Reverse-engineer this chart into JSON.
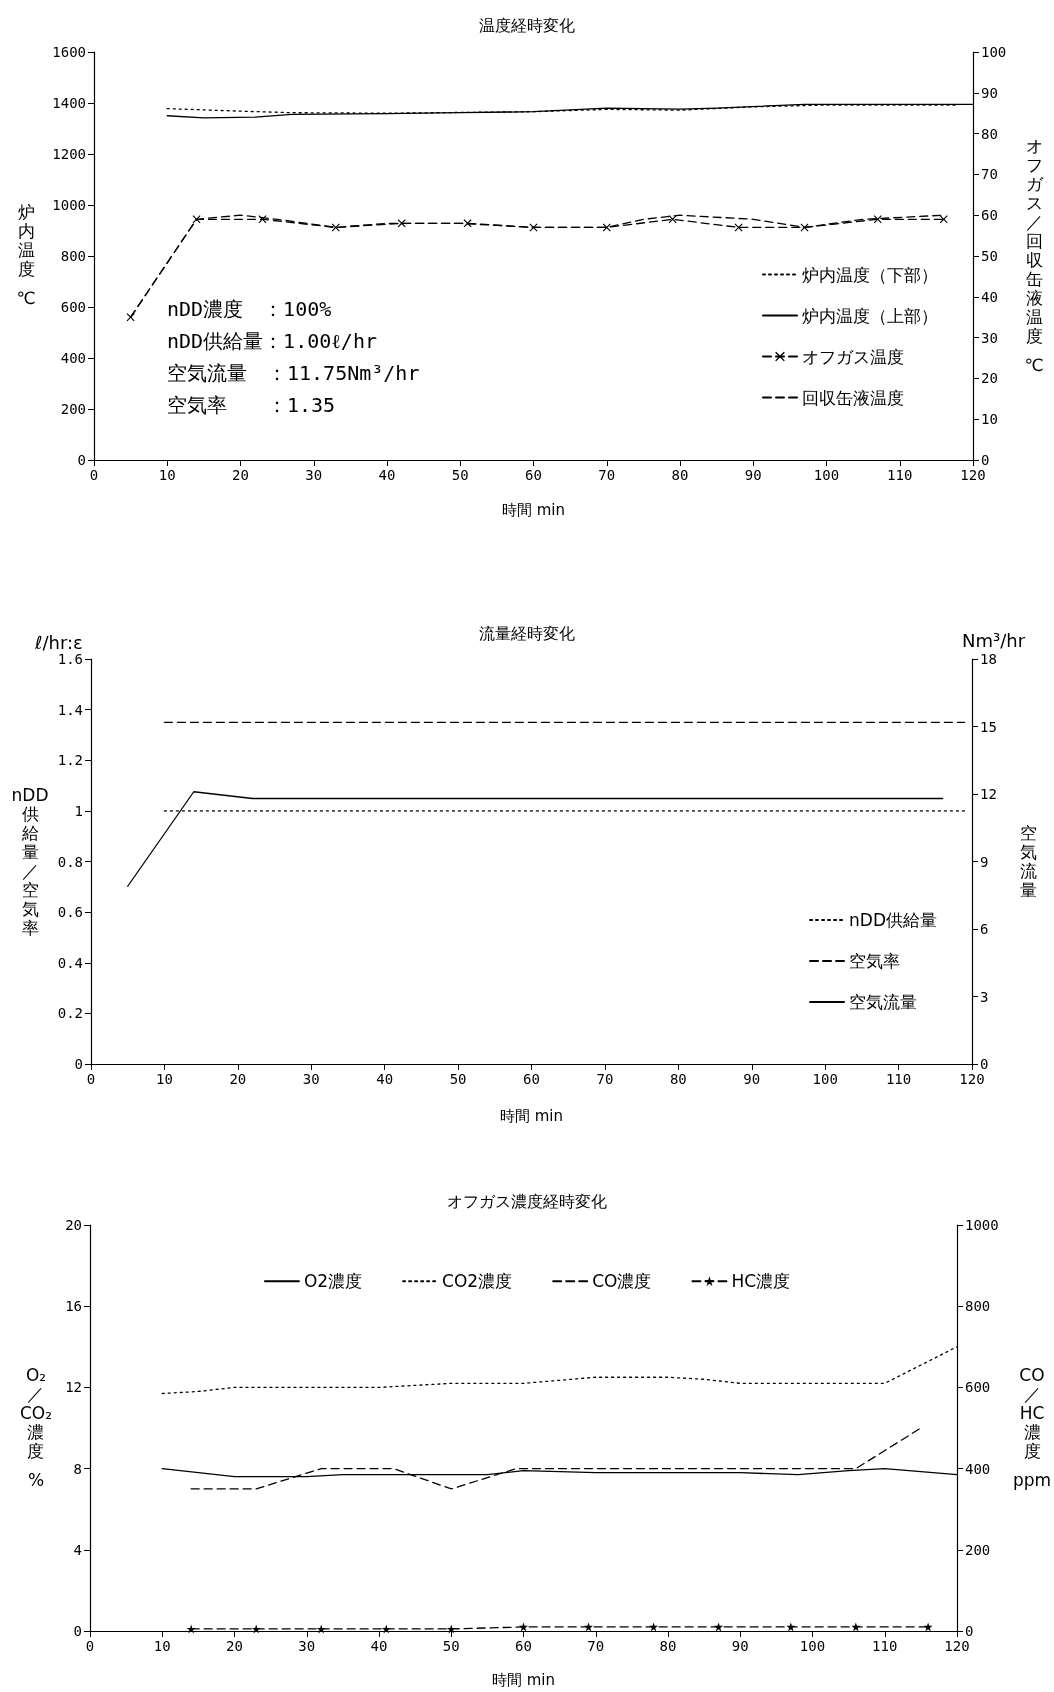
{
  "chart_data": [
    {
      "type": "line",
      "title": "温度経時変化",
      "xlabel": "時間 min",
      "ylabel": "炉内温度 ℃",
      "y2label": "オフガス／回収缶液温度 ℃",
      "annotations": [
        "nDD濃度　：100%",
        "nDD供給量：1.00ℓ/hr",
        "空気流量　：11.75Nm³/hr",
        "空気率　　：1.35"
      ],
      "xlim": [
        0,
        120
      ],
      "xticks": [
        0,
        10,
        20,
        30,
        40,
        50,
        60,
        70,
        80,
        90,
        100,
        110,
        120
      ],
      "ylim": [
        0,
        1600
      ],
      "yticks": [
        0,
        200,
        400,
        600,
        800,
        1000,
        1200,
        1400,
        1600
      ],
      "y2lim": [
        0,
        100
      ],
      "y2ticks": [
        0,
        10,
        20,
        30,
        40,
        50,
        60,
        70,
        80,
        90,
        100
      ],
      "grid": false,
      "legend": "bottom right",
      "series": [
        {
          "name": "炉内温度（下部）",
          "color": "#000000",
          "line_style": "dotted",
          "x": [
            10,
            20,
            27,
            40,
            60,
            70,
            80,
            90,
            100,
            118
          ],
          "values": [
            1378,
            1368,
            1362,
            1360,
            1366,
            1375,
            1372,
            1385,
            1392,
            1392
          ]
        },
        {
          "name": "炉内温度（上部）",
          "color": "#000000",
          "line_style": "solid",
          "x": [
            10,
            15,
            22,
            27,
            40,
            50,
            60,
            70,
            80,
            85,
            97,
            110,
            120
          ],
          "values": [
            1350,
            1342,
            1345,
            1355,
            1358,
            1362,
            1366,
            1380,
            1376,
            1380,
            1395,
            1395,
            1395
          ]
        },
        {
          "name": "オフガス温度",
          "color": "#000000",
          "line_style": "dashed",
          "marker": "cross",
          "axis": "y2",
          "x": [
            5,
            14,
            23,
            33,
            42,
            51,
            60,
            70,
            79,
            88,
            97,
            107,
            116
          ],
          "values": [
            35,
            59,
            59,
            57,
            58,
            58,
            57,
            57,
            59,
            57,
            57,
            59,
            59
          ]
        },
        {
          "name": "回収缶液温度",
          "color": "#000000",
          "line_style": "dashed",
          "axis": "y2",
          "x": [
            5,
            14,
            20,
            25,
            33,
            40,
            50,
            60,
            70,
            75,
            80,
            90,
            97,
            105,
            116
          ],
          "values": [
            35,
            59,
            60,
            59,
            57,
            58,
            58,
            57,
            57,
            59,
            60,
            59,
            57,
            59,
            60
          ]
        }
      ]
    },
    {
      "type": "line",
      "title": "流量経時変化",
      "xlabel": "時間 min",
      "ylabel": "nDD供給量／空気率",
      "y2label": "空気流量",
      "annotations": [
        "ℓ/hr:ε",
        "Nm³/hr"
      ],
      "xlim": [
        0,
        120
      ],
      "xticks": [
        0,
        10,
        20,
        30,
        40,
        50,
        60,
        70,
        80,
        90,
        100,
        110,
        120
      ],
      "ylim": [
        0,
        1.6
      ],
      "yticks": [
        0,
        0.2,
        0.4,
        0.6,
        0.8,
        1,
        1.2,
        1.4,
        1.6
      ],
      "y2lim": [
        0,
        18
      ],
      "y2ticks": [
        0,
        3,
        6,
        9,
        12,
        15,
        18
      ],
      "grid": false,
      "legend": "bottom right",
      "series": [
        {
          "name": "nDD供給量",
          "color": "#000000",
          "line_style": "dotted",
          "x": [
            10,
            119
          ],
          "values": [
            1,
            1
          ]
        },
        {
          "name": "空気率",
          "color": "#000000",
          "line_style": "dashed",
          "x": [
            10,
            119
          ],
          "values": [
            1.35,
            1.35
          ]
        },
        {
          "name": "空気流量",
          "color": "#000000",
          "line_style": "solid",
          "axis": "y2",
          "x": [
            5,
            14,
            22,
            116
          ],
          "values": [
            7.9,
            12.1,
            11.8,
            11.8
          ]
        }
      ]
    },
    {
      "type": "line",
      "title": "オフガス濃度経時変化",
      "xlabel": "時間 min",
      "ylabel": "O₂／CO₂濃度 %",
      "y2label": "CO／HC濃度 ppm",
      "xlim": [
        0,
        120
      ],
      "xticks": [
        0,
        10,
        20,
        30,
        40,
        50,
        60,
        70,
        80,
        90,
        100,
        110,
        120
      ],
      "ylim": [
        0,
        20
      ],
      "yticks": [
        0,
        4,
        8,
        12,
        16,
        20
      ],
      "y2lim": [
        0,
        1000
      ],
      "y2ticks": [
        0,
        200,
        400,
        600,
        800,
        1000
      ],
      "grid": false,
      "legend": "top",
      "series": [
        {
          "name": "O2濃度",
          "color": "#000000",
          "line_style": "solid",
          "x": [
            10,
            15,
            20,
            25,
            30,
            35,
            40,
            50,
            55,
            60,
            70,
            80,
            90,
            98,
            105,
            110,
            120
          ],
          "values": [
            8.0,
            7.8,
            7.6,
            7.6,
            7.6,
            7.7,
            7.7,
            7.7,
            7.7,
            7.9,
            7.8,
            7.8,
            7.8,
            7.7,
            7.9,
            8.0,
            7.7
          ]
        },
        {
          "name": "CO2濃度",
          "color": "#000000",
          "line_style": "dotted",
          "x": [
            10,
            15,
            20,
            30,
            40,
            50,
            60,
            70,
            80,
            85,
            90,
            100,
            110,
            120
          ],
          "values": [
            11.7,
            11.8,
            12.0,
            12.0,
            12.0,
            12.2,
            12.2,
            12.5,
            12.5,
            12.4,
            12.2,
            12.2,
            12.2,
            14.0
          ]
        },
        {
          "name": "CO濃度",
          "color": "#000000",
          "line_style": "dashed",
          "axis": "y2",
          "x": [
            14,
            23,
            32,
            42,
            50,
            59,
            106,
            115
          ],
          "values": [
            350,
            350,
            400,
            400,
            350,
            400,
            400,
            500
          ]
        },
        {
          "name": "HC濃度",
          "color": "#000000",
          "line_style": "dashed",
          "marker": "star",
          "axis": "y2",
          "x": [
            14,
            23,
            32,
            41,
            50,
            60,
            69,
            78,
            87,
            97,
            106,
            116
          ],
          "values": [
            5,
            5,
            5,
            5,
            5,
            10,
            10,
            10,
            10,
            10,
            10,
            10
          ]
        }
      ]
    }
  ]
}
